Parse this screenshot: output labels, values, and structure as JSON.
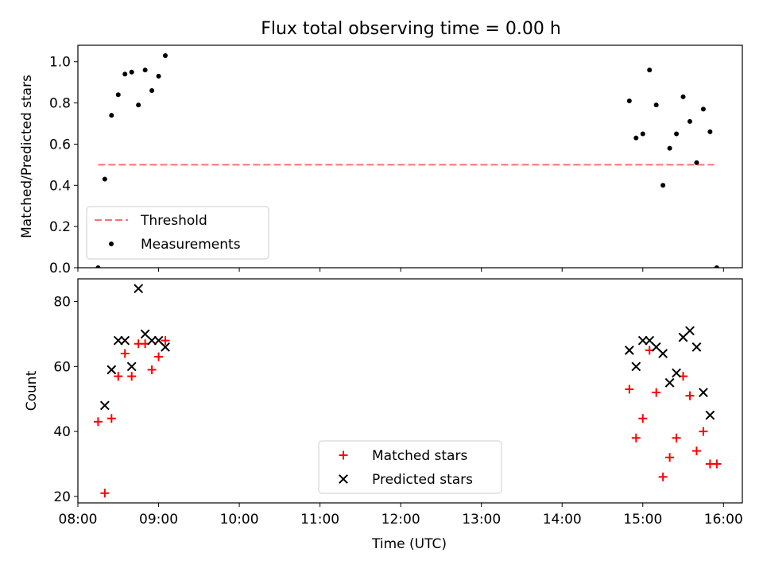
{
  "title": "Flux total observing time = 0.00 h",
  "chart_data": [
    {
      "type": "scatter",
      "ylabel": "Matched/Predicted stars",
      "ylim": [
        0.0,
        1.08
      ],
      "yticks": [
        0.0,
        0.2,
        0.4,
        0.6,
        0.8,
        1.0
      ],
      "ytick_labels": [
        "0.0",
        "0.2",
        "0.4",
        "0.6",
        "0.8",
        "1.0"
      ],
      "legend_position": "lower-left",
      "threshold": {
        "name": "Threshold",
        "value": 0.5,
        "x_start": "08:15",
        "x_end": "15:53",
        "color": "#ff7070"
      },
      "series": [
        {
          "name": "Measurements",
          "color": "#000000",
          "points": [
            [
              "08:15",
              0.0
            ],
            [
              "08:20",
              0.43
            ],
            [
              "08:25",
              0.74
            ],
            [
              "08:30",
              0.84
            ],
            [
              "08:35",
              0.94
            ],
            [
              "08:40",
              0.95
            ],
            [
              "08:45",
              0.79
            ],
            [
              "08:50",
              0.96
            ],
            [
              "08:55",
              0.86
            ],
            [
              "09:00",
              0.93
            ],
            [
              "09:05",
              1.03
            ],
            [
              "14:50",
              0.81
            ],
            [
              "14:55",
              0.63
            ],
            [
              "15:00",
              0.65
            ],
            [
              "15:05",
              0.96
            ],
            [
              "15:10",
              0.79
            ],
            [
              "15:15",
              0.4
            ],
            [
              "15:20",
              0.58
            ],
            [
              "15:25",
              0.65
            ],
            [
              "15:30",
              0.83
            ],
            [
              "15:35",
              0.71
            ],
            [
              "15:40",
              0.51
            ],
            [
              "15:45",
              0.77
            ],
            [
              "15:50",
              0.66
            ],
            [
              "15:55",
              0.0
            ]
          ]
        }
      ]
    },
    {
      "type": "scatter",
      "xlabel": "Time (UTC)",
      "ylabel": "Count",
      "ylim": [
        18,
        87
      ],
      "yticks": [
        20,
        40,
        60,
        80
      ],
      "ytick_labels": [
        "20",
        "40",
        "60",
        "80"
      ],
      "xlim": [
        "08:00",
        "16:14"
      ],
      "xticks": [
        "08:00",
        "09:00",
        "10:00",
        "11:00",
        "12:00",
        "13:00",
        "14:00",
        "15:00",
        "16:00"
      ],
      "legend_position": "lower-center",
      "series": [
        {
          "name": "Matched stars",
          "marker": "plus",
          "color": "#ff0000",
          "points": [
            [
              "08:15",
              43
            ],
            [
              "08:20",
              21
            ],
            [
              "08:25",
              44
            ],
            [
              "08:30",
              57
            ],
            [
              "08:35",
              64
            ],
            [
              "08:40",
              57
            ],
            [
              "08:45",
              67
            ],
            [
              "08:50",
              67
            ],
            [
              "08:55",
              59
            ],
            [
              "09:00",
              63
            ],
            [
              "09:05",
              68
            ],
            [
              "14:50",
              53
            ],
            [
              "14:55",
              38
            ],
            [
              "15:00",
              44
            ],
            [
              "15:05",
              65
            ],
            [
              "15:10",
              52
            ],
            [
              "15:15",
              26
            ],
            [
              "15:20",
              32
            ],
            [
              "15:25",
              38
            ],
            [
              "15:30",
              57
            ],
            [
              "15:35",
              51
            ],
            [
              "15:40",
              34
            ],
            [
              "15:45",
              40
            ],
            [
              "15:50",
              30
            ],
            [
              "15:55",
              30
            ]
          ]
        },
        {
          "name": "Predicted stars",
          "marker": "x",
          "color": "#000000",
          "points": [
            [
              "08:20",
              48
            ],
            [
              "08:25",
              59
            ],
            [
              "08:30",
              68
            ],
            [
              "08:35",
              68
            ],
            [
              "08:40",
              60
            ],
            [
              "08:45",
              84
            ],
            [
              "08:50",
              70
            ],
            [
              "08:55",
              68
            ],
            [
              "09:00",
              68
            ],
            [
              "09:05",
              66
            ],
            [
              "14:50",
              65
            ],
            [
              "14:55",
              60
            ],
            [
              "15:00",
              68
            ],
            [
              "15:05",
              68
            ],
            [
              "15:10",
              66
            ],
            [
              "15:15",
              64
            ],
            [
              "15:20",
              55
            ],
            [
              "15:25",
              58
            ],
            [
              "15:30",
              69
            ],
            [
              "15:35",
              71
            ],
            [
              "15:40",
              66
            ],
            [
              "15:45",
              52
            ],
            [
              "15:50",
              45
            ]
          ]
        }
      ]
    }
  ]
}
